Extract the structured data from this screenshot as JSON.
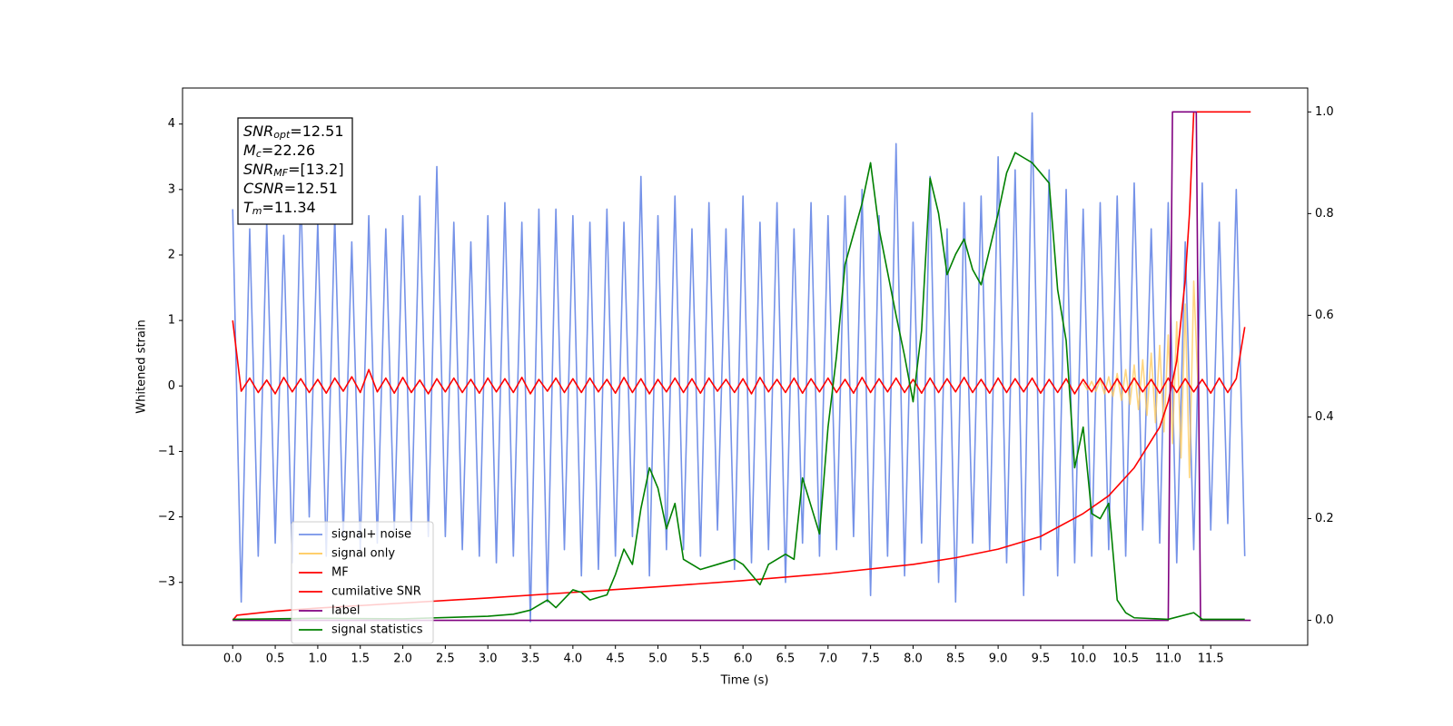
{
  "chart_data": {
    "type": "line",
    "xlabel": "Time (s)",
    "ylabel": "Whitened strain",
    "xlim": [
      -0.59,
      12.64
    ],
    "ylim": [
      -3.96,
      4.55
    ],
    "y2lim": [
      -0.049,
      1.047
    ],
    "xticks": [
      {
        "value": 0,
        "label": "0.0"
      },
      0.5,
      {
        "value": 1,
        "label": "1.0"
      },
      1.5,
      {
        "value": 2,
        "label": "2.0"
      },
      2.5,
      {
        "value": 3,
        "label": "3.0"
      },
      3.5,
      {
        "value": 4,
        "label": "4.0"
      },
      4.5,
      {
        "value": 5,
        "label": "5.0"
      },
      5.5,
      {
        "value": 6,
        "label": "6.0"
      },
      6.5,
      {
        "value": 7,
        "label": "7.0"
      },
      7.5,
      {
        "value": 8,
        "label": "8.0"
      },
      8.5,
      {
        "value": 9,
        "label": "9.0"
      },
      9.5,
      {
        "value": 10,
        "label": "10.0"
      },
      10.5,
      {
        "value": 11,
        "label": "11.0"
      },
      11.5
    ],
    "yticks": [
      {
        "value": -3,
        "label": "−3"
      },
      {
        "value": -2,
        "label": "−2"
      },
      {
        "value": -1,
        "label": "−1"
      },
      0,
      1,
      2,
      3,
      4
    ],
    "y2ticks": [
      {
        "value": 0,
        "label": "0.0"
      },
      0.2,
      0.4,
      0.6,
      0.8,
      {
        "value": 1,
        "label": "1.0"
      }
    ],
    "legend": "lower left",
    "annotations": [
      {
        "base": "SNR",
        "sub": "opt",
        "text": "=12.51"
      },
      {
        "base": "M",
        "sub": "c",
        "text": "=22.26"
      },
      {
        "base": "SNR",
        "sub": "MF",
        "text": "=[13.2]"
      },
      {
        "base": "CSNR",
        "text": "=12.51"
      },
      {
        "base": "T",
        "sub": "m",
        "text": "=11.34"
      }
    ],
    "x": [
      0,
      0.1,
      0.2,
      0.3,
      0.4,
      0.5,
      0.6,
      0.7,
      0.8,
      0.9,
      1,
      1.1,
      1.2,
      1.3,
      1.4,
      1.5,
      1.6,
      1.7,
      1.8,
      1.9,
      2,
      2.1,
      2.2,
      2.3,
      2.4,
      2.5,
      2.6,
      2.7,
      2.8,
      2.9,
      3,
      3.1,
      3.2,
      3.3,
      3.4,
      3.5,
      3.6,
      3.7,
      3.8,
      3.9,
      4,
      4.1,
      4.2,
      4.3,
      4.4,
      4.5,
      4.6,
      4.7,
      4.8,
      4.9,
      5,
      5.1,
      5.2,
      5.3,
      5.4,
      5.5,
      5.6,
      5.7,
      5.8,
      5.9,
      6,
      6.1,
      6.2,
      6.3,
      6.4,
      6.5,
      6.6,
      6.7,
      6.8,
      6.9,
      7,
      7.1,
      7.2,
      7.3,
      7.4,
      7.5,
      7.6,
      7.7,
      7.8,
      7.9,
      8,
      8.1,
      8.2,
      8.3,
      8.4,
      8.5,
      8.6,
      8.7,
      8.8,
      8.9,
      9,
      9.1,
      9.2,
      9.3,
      9.4,
      9.5,
      9.6,
      9.7,
      9.8,
      9.9,
      10,
      10.1,
      10.2,
      10.3,
      10.4,
      10.5,
      10.6,
      10.7,
      10.8,
      10.9,
      11,
      11.1,
      11.2,
      11.3,
      11.4,
      11.5,
      11.6,
      11.7,
      11.8,
      11.9
    ],
    "series": [
      {
        "name": "signal+ noise",
        "color": "#7592e8",
        "values": [
          2.7,
          -3.3,
          2.4,
          -2.6,
          2.5,
          -2.4,
          2.3,
          -2.7,
          3.0,
          -2.0,
          2.5,
          -2.6,
          2.6,
          -2.3,
          2.2,
          -2.5,
          2.6,
          -2.4,
          2.4,
          -2.2,
          2.6,
          -2.2,
          2.9,
          -2.3,
          3.35,
          -2.3,
          2.5,
          -2.5,
          2.2,
          -2.6,
          2.6,
          -2.7,
          2.8,
          -2.6,
          2.5,
          -3.6,
          2.7,
          -3.3,
          2.7,
          -2.5,
          2.6,
          -2.9,
          2.5,
          -2.8,
          2.7,
          -2.6,
          2.5,
          -2.3,
          3.2,
          -2.9,
          2.6,
          -2.5,
          2.9,
          -2.5,
          2.4,
          -2.6,
          2.8,
          -2.2,
          2.4,
          -2.8,
          2.9,
          -2.7,
          2.5,
          -2.5,
          2.8,
          -3.0,
          2.4,
          -2.4,
          2.8,
          -2.6,
          2.6,
          -2.5,
          2.9,
          -2.3,
          3.0,
          -3.2,
          2.6,
          -2.6,
          3.7,
          -2.9,
          2.5,
          -2.4,
          3.2,
          -3.0,
          2.4,
          -3.3,
          2.8,
          -2.4,
          2.9,
          -2.5,
          3.5,
          -2.7,
          3.3,
          -3.2,
          4.17,
          -2.5,
          3.3,
          -2.9,
          3.0,
          -2.7,
          2.7,
          -2.6,
          2.8,
          -2.5,
          2.9,
          -2.6,
          3.1,
          -2.2,
          2.4,
          -2.4,
          2.8,
          -2.7,
          2.2,
          -2.5,
          3.1,
          -2.2,
          2.5,
          -2.1,
          3.0,
          -2.6
        ]
      },
      {
        "name": "signal only",
        "color": "#ffc857",
        "x": [
          10,
          10.05,
          10.1,
          10.15,
          10.2,
          10.25,
          10.3,
          10.35,
          10.4,
          10.45,
          10.5,
          10.55,
          10.6,
          10.65,
          10.7,
          10.75,
          10.8,
          10.85,
          10.9,
          10.95,
          11,
          11.05,
          11.1,
          11.15,
          11.2,
          11.25,
          11.3,
          11.35
        ],
        "values": [
          0.05,
          -0.06,
          0.07,
          -0.08,
          0.1,
          -0.12,
          0.14,
          -0.16,
          0.19,
          -0.22,
          0.25,
          -0.28,
          0.32,
          -0.36,
          0.4,
          -0.45,
          0.5,
          -0.56,
          0.62,
          -0.7,
          0.78,
          -0.88,
          0.98,
          -1.1,
          1.25,
          -1.4,
          1.6,
          0
        ]
      },
      {
        "name": "MF",
        "color": "#ff0000",
        "values": [
          1.0,
          -0.08,
          0.12,
          -0.1,
          0.09,
          -0.12,
          0.13,
          -0.09,
          0.11,
          -0.1,
          0.1,
          -0.11,
          0.12,
          -0.08,
          0.14,
          -0.1,
          0.25,
          -0.09,
          0.12,
          -0.11,
          0.13,
          -0.1,
          0.09,
          -0.12,
          0.11,
          -0.09,
          0.12,
          -0.1,
          0.1,
          -0.11,
          0.12,
          -0.09,
          0.11,
          -0.1,
          0.13,
          -0.12,
          0.1,
          -0.08,
          0.12,
          -0.1,
          0.11,
          -0.1,
          0.12,
          -0.09,
          0.1,
          -0.11,
          0.13,
          -0.1,
          0.11,
          -0.12,
          0.1,
          -0.09,
          0.12,
          -0.1,
          0.11,
          -0.11,
          0.12,
          -0.08,
          0.1,
          -0.1,
          0.11,
          -0.12,
          0.13,
          -0.09,
          0.1,
          -0.1,
          0.12,
          -0.11,
          0.11,
          -0.09,
          0.12,
          -0.1,
          0.1,
          -0.11,
          0.13,
          -0.1,
          0.11,
          -0.09,
          0.12,
          -0.1,
          0.1,
          -0.11,
          0.12,
          -0.1,
          0.11,
          -0.09,
          0.13,
          -0.1,
          0.1,
          -0.11,
          0.12,
          -0.1,
          0.11,
          -0.09,
          0.12,
          -0.11,
          0.1,
          -0.1,
          0.11,
          -0.12,
          0.1,
          -0.09,
          0.12,
          -0.1,
          0.11,
          -0.1,
          0.12,
          -0.09,
          0.1,
          -0.11,
          0.12,
          -0.1,
          0.11,
          -0.09,
          0.1,
          -0.11,
          0.12,
          -0.1,
          0.11,
          0.9
        ]
      },
      {
        "name": "cumilative SNR",
        "color": "#ff0000",
        "axis": "y2",
        "x": [
          0,
          0.05,
          0.5,
          1,
          2,
          3,
          4,
          5,
          6,
          7,
          8,
          8.5,
          9,
          9.5,
          10,
          10.3,
          10.6,
          10.9,
          11,
          11.1,
          11.2,
          11.25,
          11.3,
          11.35,
          11.97
        ],
        "values": [
          0,
          0.01,
          0.018,
          0.024,
          0.034,
          0.044,
          0.055,
          0.066,
          0.078,
          0.092,
          0.11,
          0.123,
          0.14,
          0.165,
          0.21,
          0.245,
          0.3,
          0.38,
          0.43,
          0.51,
          0.67,
          0.8,
          1.0,
          1.0,
          1.0
        ]
      },
      {
        "name": "label",
        "color": "#800080",
        "axis": "y2",
        "x": [
          0,
          11,
          11.05,
          11.33,
          11.38,
          11.97
        ],
        "values": [
          0,
          0,
          1,
          1,
          0,
          0
        ]
      },
      {
        "name": "signal statistics",
        "color": "#008000",
        "axis": "y2",
        "x": [
          0,
          1,
          2,
          3,
          3.3,
          3.5,
          3.7,
          3.8,
          4,
          4.1,
          4.2,
          4.4,
          4.5,
          4.6,
          4.7,
          4.8,
          4.9,
          5,
          5.1,
          5.2,
          5.3,
          5.5,
          5.7,
          5.9,
          6,
          6.2,
          6.3,
          6.5,
          6.6,
          6.7,
          6.9,
          7,
          7.1,
          7.2,
          7.4,
          7.5,
          7.6,
          7.8,
          7.9,
          8,
          8.1,
          8.2,
          8.3,
          8.4,
          8.5,
          8.6,
          8.7,
          8.8,
          9,
          9.1,
          9.2,
          9.3,
          9.4,
          9.5,
          9.6,
          9.7,
          9.8,
          9.9,
          10,
          10.1,
          10.2,
          10.3,
          10.4,
          10.5,
          10.6,
          11,
          11.3,
          11.4,
          11.9
        ],
        "values": [
          0.002,
          0.004,
          0.003,
          0.008,
          0.012,
          0.02,
          0.04,
          0.025,
          0.06,
          0.055,
          0.04,
          0.05,
          0.09,
          0.14,
          0.11,
          0.22,
          0.3,
          0.26,
          0.18,
          0.23,
          0.12,
          0.1,
          0.11,
          0.12,
          0.11,
          0.07,
          0.11,
          0.13,
          0.12,
          0.28,
          0.17,
          0.38,
          0.52,
          0.7,
          0.82,
          0.9,
          0.77,
          0.6,
          0.52,
          0.43,
          0.57,
          0.87,
          0.8,
          0.68,
          0.72,
          0.75,
          0.69,
          0.66,
          0.8,
          0.88,
          0.92,
          0.91,
          0.9,
          0.88,
          0.86,
          0.65,
          0.55,
          0.3,
          0.38,
          0.21,
          0.2,
          0.23,
          0.04,
          0.015,
          0.005,
          0.002,
          0.015,
          0.002,
          0.002
        ]
      }
    ]
  }
}
